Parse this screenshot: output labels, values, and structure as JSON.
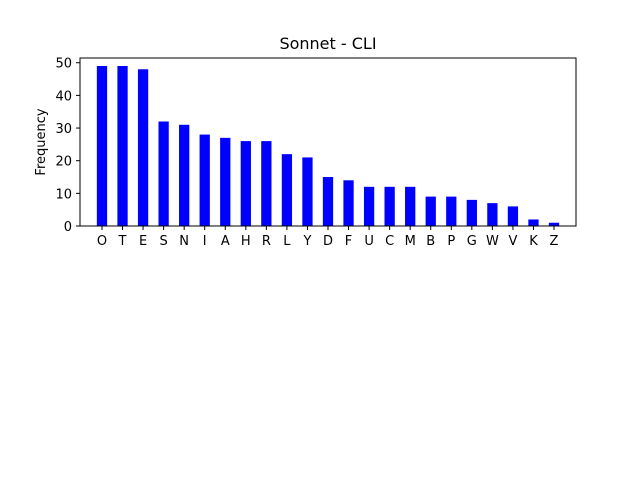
{
  "chart_data": {
    "type": "bar",
    "title": "Sonnet - CLI",
    "xlabel": "",
    "ylabel": "Frequency",
    "categories": [
      "O",
      "T",
      "E",
      "S",
      "N",
      "I",
      "A",
      "H",
      "R",
      "L",
      "Y",
      "D",
      "F",
      "U",
      "C",
      "M",
      "B",
      "P",
      "G",
      "W",
      "V",
      "K",
      "Z"
    ],
    "values": [
      49,
      49,
      48,
      32,
      31,
      28,
      27,
      26,
      26,
      22,
      21,
      15,
      14,
      12,
      12,
      12,
      9,
      9,
      8,
      7,
      6,
      2,
      1
    ],
    "ylim": [
      0,
      51.45
    ],
    "yticks": [
      0,
      10,
      20,
      30,
      40,
      50
    ],
    "grid": false,
    "bar_color": "#0000ff"
  }
}
